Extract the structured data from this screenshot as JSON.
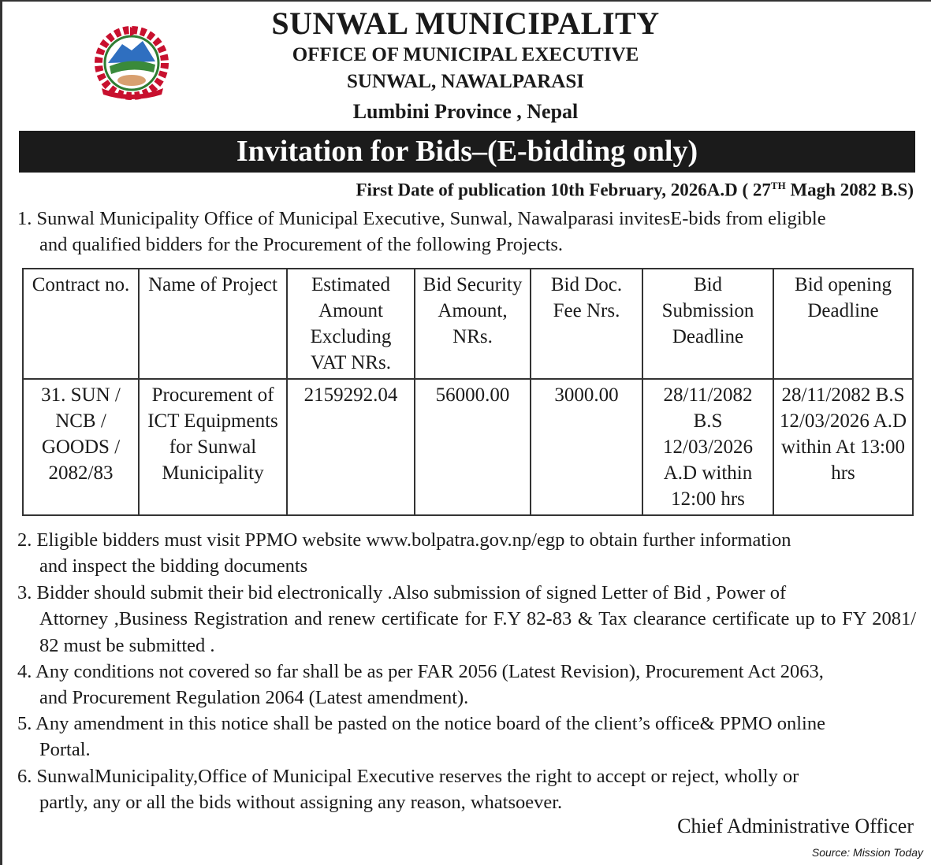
{
  "header": {
    "title": "SUNWAL MUNICIPALITY",
    "office": "OFFICE OF MUNICIPAL EXECUTIVE",
    "location": "SUNWAL, NAWALPARASI",
    "province": "Lumbini Province , Nepal",
    "emblem": "nepal-coat-of-arms"
  },
  "banner": "Invitation for Bids–(E-bidding only)",
  "publication": {
    "text": "First Date of publication  10th February, 2026A.D ( 27",
    "sup": "TH",
    "tail": " Magh 2082 B.S)"
  },
  "items": [
    {
      "first": "1. Sunwal Municipality Office of Municipal Executive, Sunwal, Nawalparasi invitesE-bids  from eligible",
      "rest": "and qualified bidders for the Procurement of the following Projects."
    },
    {
      "first": "2. Eligible bidders  must visit PPMO website www.bolpatra.gov.np/egp to obtain further information",
      "rest": "and inspect the bidding documents"
    },
    {
      "first": "3. Bidder should submit their bid electronically  .Also submission of  signed  Letter  of  Bid , Power of",
      "rest": "Attorney ,Business Registration and renew certificate for F.Y 82-83 &  Tax clearance certificate up to FY 2081/ 82   must be submitted  ."
    },
    {
      "first": "4. Any conditions not covered so far shall be as per FAR 2056 (Latest Revision), Procurement Act 2063,",
      "rest": "and Procurement Regulation 2064 (Latest  amendment)."
    },
    {
      "first": "5. Any amendment in this notice shall be pasted on the notice board of the client’s office& PPMO online",
      "rest": "Portal."
    },
    {
      "first": "6. SunwalMunicipality,Office of Municipal Executive reserves the right to accept or reject, wholly or",
      "rest": "partly, any or all the bids without assigning any reason, whatsoever."
    }
  ],
  "table": {
    "headers": [
      "Contract no.",
      "Name of Project",
      "Estimated Amount Excluding VAT NRs.",
      "Bid Security Amount, NRs.",
      "Bid Doc. Fee Nrs.",
      "Bid Submission Deadline",
      "Bid opening Deadline"
    ],
    "rows": [
      [
        "31. SUN / NCB / GOODS / 2082/83",
        "Procurement of ICT Equipments for Sunwal Municipality",
        "2159292.04",
        "56000.00",
        "3000.00",
        "28/11/2082 B.S 12/03/2026 A.D within 12:00 hrs",
        "28/11/2082 B.S 12/03/2026 A.D within At 13:00 hrs"
      ]
    ]
  },
  "signature": "Chief Administrative Officer",
  "source": "Source: Mission Today"
}
